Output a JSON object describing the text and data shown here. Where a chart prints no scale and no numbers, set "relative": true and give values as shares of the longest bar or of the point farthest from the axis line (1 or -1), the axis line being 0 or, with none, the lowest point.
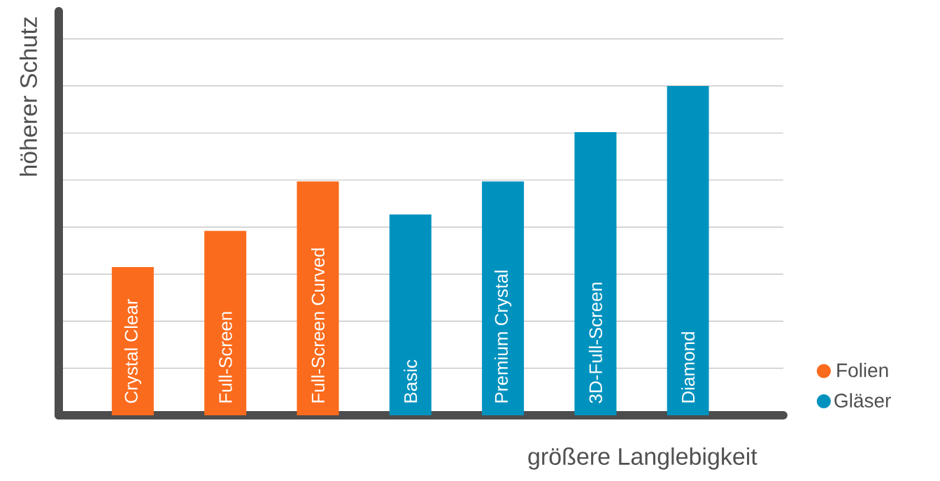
{
  "chart_data": {
    "type": "bar",
    "xlabel": "größere Langlebigkeit",
    "ylabel": "höherer Schutz",
    "categories": [
      "Crystal Clear",
      "Full-Screen",
      "Full-Screen Curved",
      "Basic",
      "Premium Crystal",
      "3D-Full-Screen",
      "Diamond"
    ],
    "series": [
      {
        "name": "Folien",
        "color": "#fb6b1d",
        "values": [
          0.45,
          0.56,
          0.71,
          null,
          null,
          null,
          null
        ]
      },
      {
        "name": "Gläser",
        "color": "#0092bf",
        "values": [
          null,
          null,
          null,
          0.61,
          0.71,
          0.86,
          1.0
        ]
      }
    ],
    "relative": true,
    "grid": "y",
    "legend": "bottom right"
  }
}
